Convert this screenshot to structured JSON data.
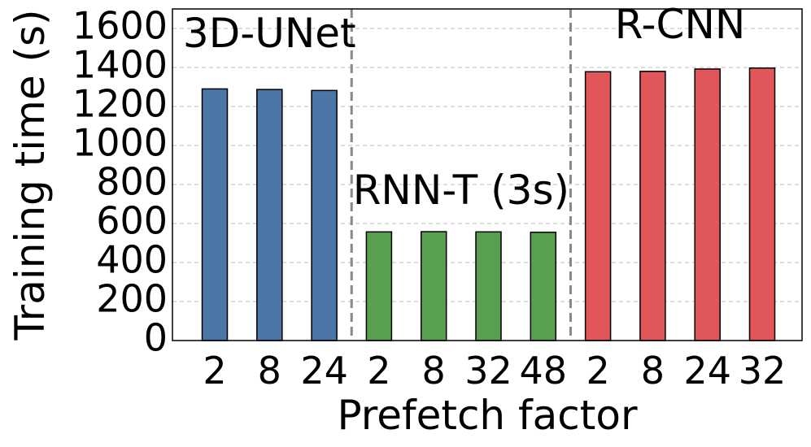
{
  "chart_data": {
    "type": "bar",
    "xlabel": "Prefetch factor",
    "ylabel": "Training time (s)",
    "ylim": [
      0,
      1700
    ],
    "yticks": [
      0,
      200,
      400,
      600,
      800,
      1000,
      1200,
      1400,
      1600
    ],
    "grid": true,
    "groups": [
      {
        "name": "3D-UNet",
        "color": "#4b76a7",
        "categories": [
          "2",
          "8",
          "24"
        ],
        "values": [
          1290,
          1287,
          1282
        ]
      },
      {
        "name": "RNN-T (3s)",
        "color": "#58a04f",
        "categories": [
          "2",
          "8",
          "32",
          "48"
        ],
        "values": [
          557,
          558,
          557,
          555
        ]
      },
      {
        "name": "R-CNN",
        "color": "#e0565b",
        "categories": [
          "2",
          "8",
          "24",
          "32"
        ],
        "values": [
          1378,
          1380,
          1392,
          1397
        ]
      }
    ]
  }
}
